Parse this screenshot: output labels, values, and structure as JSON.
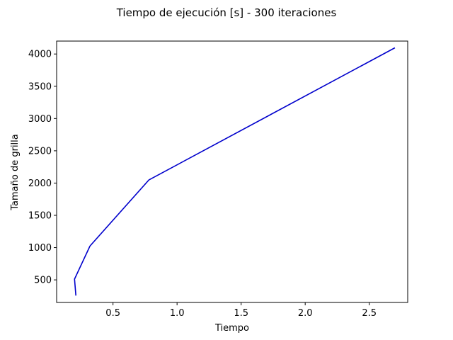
{
  "chart_data": {
    "type": "line",
    "title": "Tiempo de ejecución [s] - 300 iteraciones",
    "xlabel": "Tiempo",
    "ylabel": "Tamaño de grilla",
    "xlim": [
      0.06,
      2.8
    ],
    "ylim": [
      150,
      4200
    ],
    "xticks": [
      0.5,
      1.0,
      1.5,
      2.0,
      2.5
    ],
    "xtick_labels": [
      "0.5",
      "1.0",
      "1.5",
      "2.0",
      "2.5"
    ],
    "yticks": [
      500,
      1000,
      1500,
      2000,
      2500,
      3000,
      3500,
      4000
    ],
    "ytick_labels": [
      "500",
      "1000",
      "1500",
      "2000",
      "2500",
      "3000",
      "3500",
      "4000"
    ],
    "grid": false,
    "series": [
      {
        "name": "Tiempo de ejecución",
        "color": "#0000cc",
        "x": [
          0.21,
          0.2,
          0.32,
          0.78,
          2.7
        ],
        "y": [
          256,
          512,
          1024,
          2048,
          4096
        ]
      }
    ]
  }
}
